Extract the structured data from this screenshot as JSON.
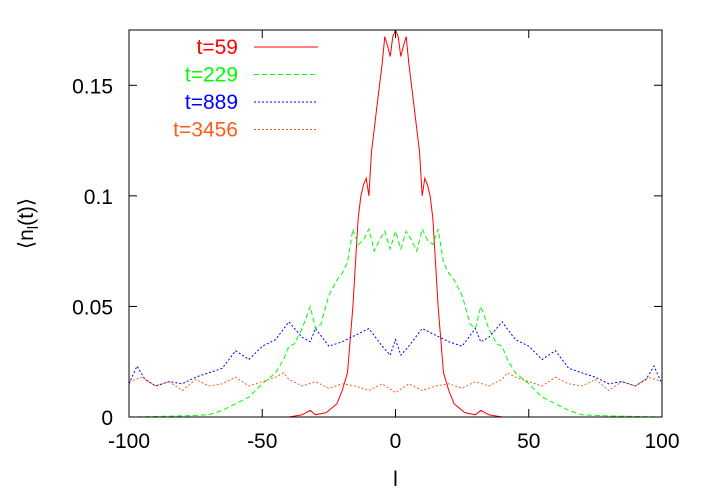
{
  "chart_data": {
    "type": "line",
    "title": "",
    "xlabel": "l",
    "ylabel": "⟨n_l(t)⟩",
    "xlim": [
      -100,
      100
    ],
    "ylim": [
      0,
      0.175
    ],
    "xticks": [
      {
        "value": -100,
        "label": "-100"
      },
      {
        "value": -50,
        "label": "-50"
      },
      {
        "value": 0,
        "label": "0"
      },
      {
        "value": 50,
        "label": "50"
      },
      {
        "value": 100,
        "label": "100"
      }
    ],
    "yticks": [
      {
        "value": 0,
        "label": "0"
      },
      {
        "value": 0.05,
        "label": "0.05"
      },
      {
        "value": 0.1,
        "label": "0.1"
      },
      {
        "value": 0.15,
        "label": "0.15"
      }
    ],
    "grid": false,
    "legend_position": "top-left",
    "series": [
      {
        "name": "t=59",
        "color": "#ff0000",
        "dash": "solid",
        "x": [
          -100,
          -40,
          -35,
          -32,
          -30,
          -26,
          -22,
          -20,
          -18,
          -17,
          -16,
          -15,
          -14,
          -13,
          -12,
          -11,
          -10,
          -9,
          -8,
          -7,
          -6,
          -5,
          -4,
          -3,
          -2,
          -1,
          0,
          1,
          2,
          3,
          4,
          5,
          6,
          7,
          8,
          9,
          10,
          11,
          12,
          13,
          14,
          15,
          16,
          17,
          18,
          20,
          22,
          26,
          30,
          32,
          35,
          40,
          100
        ],
        "y": [
          0,
          0,
          0.001,
          0.003,
          0.001,
          0.002,
          0.006,
          0.012,
          0.02,
          0.035,
          0.05,
          0.07,
          0.09,
          0.1,
          0.105,
          0.108,
          0.1,
          0.12,
          0.13,
          0.14,
          0.15,
          0.16,
          0.172,
          0.168,
          0.163,
          0.172,
          0.175,
          0.172,
          0.163,
          0.168,
          0.172,
          0.16,
          0.15,
          0.14,
          0.13,
          0.12,
          0.1,
          0.108,
          0.105,
          0.1,
          0.09,
          0.07,
          0.05,
          0.035,
          0.02,
          0.012,
          0.006,
          0.002,
          0.001,
          0.003,
          0.001,
          0,
          0
        ]
      },
      {
        "name": "t=229",
        "color": "#00ff00",
        "dash": "dashed",
        "x": [
          -100,
          -80,
          -70,
          -65,
          -60,
          -55,
          -50,
          -45,
          -42,
          -40,
          -38,
          -35,
          -32,
          -30,
          -28,
          -25,
          -22,
          -20,
          -18,
          -16,
          -14,
          -12,
          -10,
          -8,
          -6,
          -4,
          -2,
          0,
          2,
          4,
          6,
          8,
          10,
          12,
          14,
          16,
          18,
          20,
          22,
          25,
          28,
          30,
          32,
          35,
          38,
          40,
          42,
          45,
          50,
          55,
          60,
          65,
          70,
          80,
          100
        ],
        "y": [
          0,
          0.0005,
          0.001,
          0.003,
          0.006,
          0.009,
          0.015,
          0.02,
          0.026,
          0.032,
          0.033,
          0.04,
          0.05,
          0.04,
          0.042,
          0.055,
          0.062,
          0.065,
          0.07,
          0.085,
          0.078,
          0.08,
          0.085,
          0.075,
          0.08,
          0.084,
          0.076,
          0.084,
          0.076,
          0.084,
          0.08,
          0.075,
          0.085,
          0.08,
          0.078,
          0.085,
          0.07,
          0.065,
          0.062,
          0.055,
          0.042,
          0.04,
          0.05,
          0.04,
          0.033,
          0.032,
          0.026,
          0.02,
          0.015,
          0.009,
          0.006,
          0.003,
          0.001,
          0.0005,
          0
        ]
      },
      {
        "name": "t=889",
        "color": "#0000ff",
        "dash": "dotted",
        "x": [
          -100,
          -97,
          -94,
          -90,
          -85,
          -80,
          -75,
          -70,
          -65,
          -60,
          -55,
          -50,
          -45,
          -40,
          -35,
          -32,
          -30,
          -25,
          -20,
          -15,
          -10,
          -5,
          -2,
          0,
          2,
          5,
          10,
          15,
          20,
          25,
          30,
          32,
          35,
          40,
          45,
          50,
          55,
          60,
          65,
          70,
          75,
          80,
          85,
          90,
          94,
          97,
          100
        ],
        "y": [
          0.015,
          0.023,
          0.017,
          0.014,
          0.016,
          0.015,
          0.018,
          0.02,
          0.022,
          0.03,
          0.026,
          0.032,
          0.035,
          0.043,
          0.036,
          0.034,
          0.04,
          0.032,
          0.034,
          0.037,
          0.04,
          0.032,
          0.028,
          0.035,
          0.028,
          0.032,
          0.04,
          0.037,
          0.034,
          0.032,
          0.04,
          0.034,
          0.036,
          0.043,
          0.035,
          0.032,
          0.026,
          0.03,
          0.022,
          0.02,
          0.018,
          0.015,
          0.016,
          0.014,
          0.017,
          0.023,
          0.015
        ]
      },
      {
        "name": "t=3456",
        "color": "#ff5a1e",
        "dash": "dotted",
        "x": [
          -100,
          -95,
          -90,
          -85,
          -80,
          -75,
          -70,
          -65,
          -60,
          -55,
          -50,
          -45,
          -42,
          -40,
          -35,
          -30,
          -25,
          -20,
          -15,
          -10,
          -5,
          0,
          5,
          10,
          15,
          20,
          25,
          30,
          35,
          40,
          42,
          45,
          50,
          55,
          60,
          65,
          70,
          75,
          80,
          85,
          90,
          95,
          100
        ],
        "y": [
          0.016,
          0.018,
          0.014,
          0.016,
          0.012,
          0.017,
          0.014,
          0.015,
          0.018,
          0.014,
          0.016,
          0.018,
          0.02,
          0.017,
          0.014,
          0.016,
          0.013,
          0.015,
          0.014,
          0.012,
          0.015,
          0.011,
          0.015,
          0.012,
          0.014,
          0.015,
          0.013,
          0.016,
          0.014,
          0.017,
          0.02,
          0.018,
          0.016,
          0.014,
          0.018,
          0.015,
          0.014,
          0.017,
          0.012,
          0.016,
          0.014,
          0.018,
          0.016
        ]
      }
    ]
  }
}
